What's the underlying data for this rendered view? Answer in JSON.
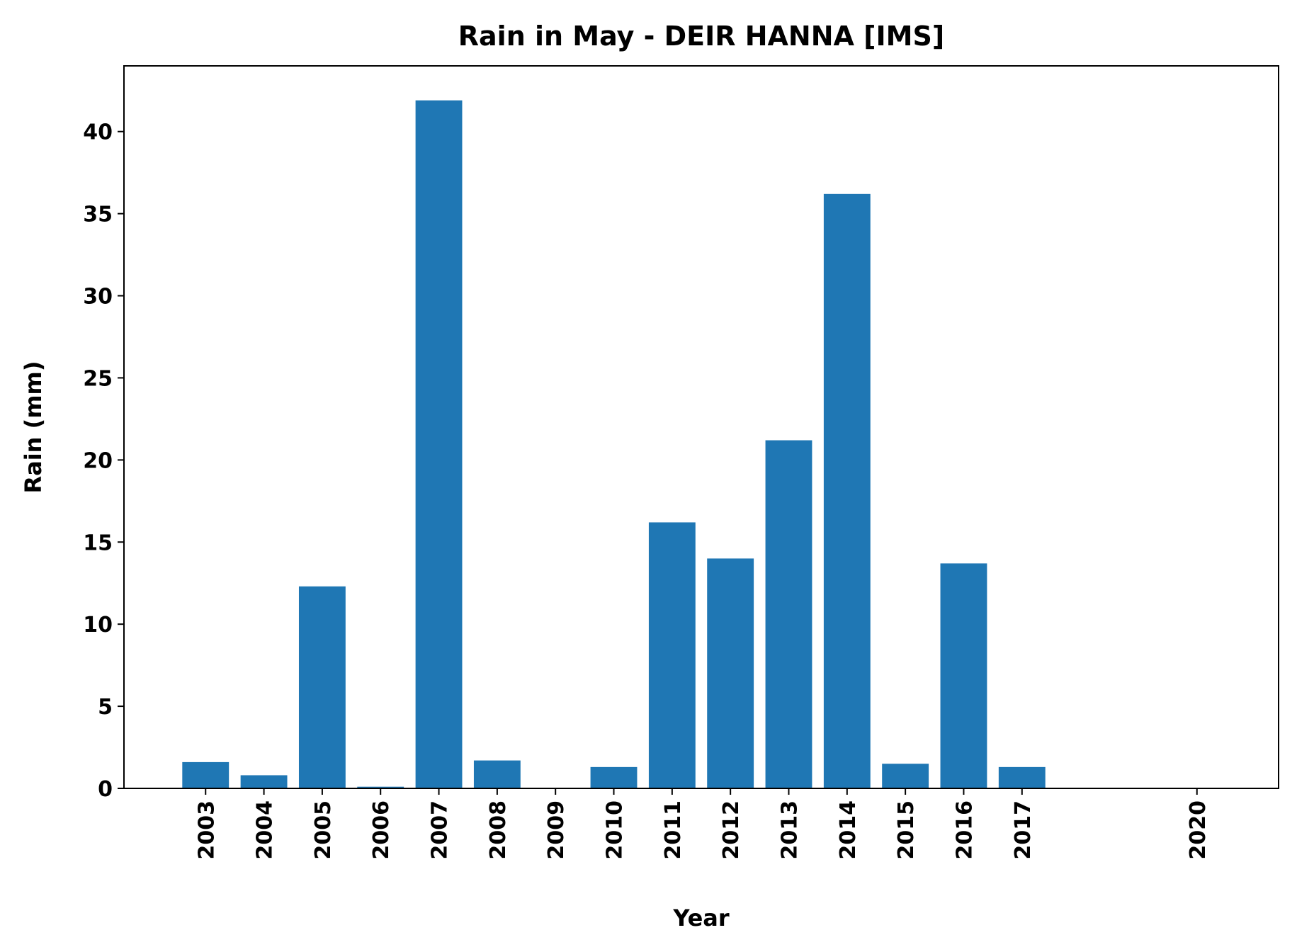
{
  "chart_data": {
    "type": "bar",
    "title": "Rain in May - DEIR HANNA [IMS]",
    "xlabel": "Year",
    "ylabel": "Rain (mm)",
    "x": [
      2003,
      2004,
      2005,
      2006,
      2007,
      2008,
      2009,
      2010,
      2011,
      2012,
      2013,
      2014,
      2015,
      2016,
      2017,
      2020
    ],
    "values": [
      1.6,
      0.8,
      12.3,
      0.1,
      41.9,
      1.7,
      0.0,
      1.3,
      16.2,
      14.0,
      21.2,
      36.2,
      1.5,
      13.7,
      1.3,
      0.0
    ],
    "xlim": [
      2001.6,
      2021.4
    ],
    "ylim": [
      0,
      44
    ],
    "yticks": [
      0,
      5,
      10,
      15,
      20,
      25,
      30,
      35,
      40
    ],
    "xtick_labels": [
      "2003",
      "2004",
      "2005",
      "2006",
      "2007",
      "2008",
      "2009",
      "2010",
      "2011",
      "2012",
      "2013",
      "2014",
      "2015",
      "2016",
      "2017",
      "2020"
    ],
    "bar_color": "#1f77b4",
    "grid": false,
    "legend": false
  }
}
